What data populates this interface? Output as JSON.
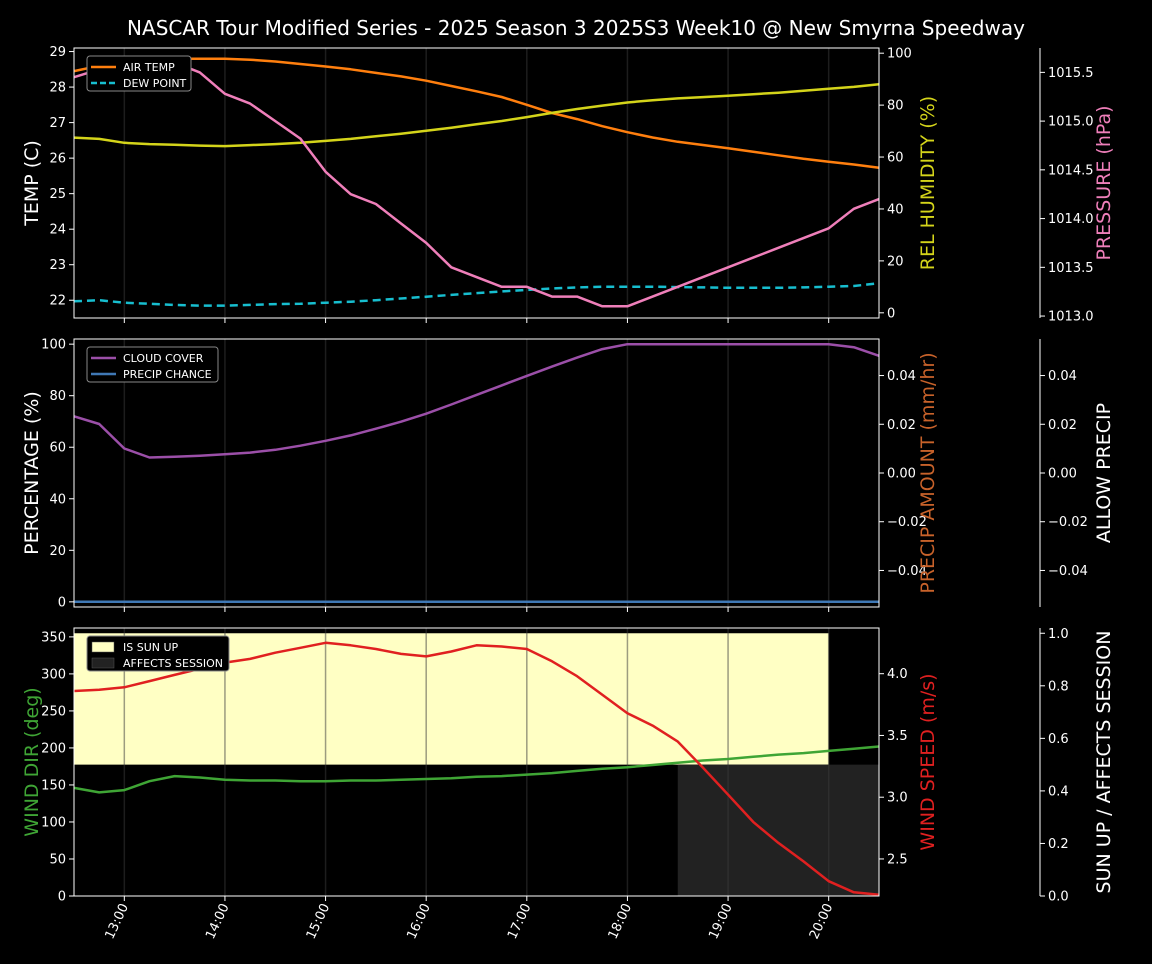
{
  "chart_data": {
    "title": "NASCAR Tour Modified Series - 2025 Season 3 2025S3 Week10 @ New Smyrna Speedway",
    "time_ticks": [
      "13:00",
      "14:00",
      "15:00",
      "16:00",
      "17:00",
      "18:00",
      "19:00",
      "20:00"
    ],
    "x_range_hours": [
      12.5,
      20.5
    ],
    "x": [
      12.5,
      12.75,
      13.0,
      13.25,
      13.5,
      13.75,
      14.0,
      14.25,
      14.5,
      14.75,
      15.0,
      15.25,
      15.5,
      15.75,
      16.0,
      16.25,
      16.5,
      16.75,
      17.0,
      17.25,
      17.5,
      17.75,
      18.0,
      18.25,
      18.5,
      18.75,
      19.0,
      19.25,
      19.5,
      19.75,
      20.0,
      20.25,
      20.5
    ],
    "panels": [
      {
        "type": "line",
        "ylabel": "TEMP (C)",
        "ylim": [
          21.5,
          29.1
        ],
        "yticks": [
          22,
          23,
          24,
          25,
          26,
          27,
          28,
          29
        ],
        "right_label": "REL HUMIDITY (%)",
        "right_color": "#d4d41a",
        "right_ylim": [
          -2,
          102
        ],
        "right_ticks": [
          0,
          20,
          40,
          60,
          80,
          100
        ],
        "far_label": "PRESSURE (hPa)",
        "far_color": "#ef7fba",
        "far_ylim": [
          1012.98,
          1015.75
        ],
        "far_ticks": [
          "1013.0",
          "1013.5",
          "1014.0",
          "1014.5",
          "1015.0",
          "1015.5"
        ],
        "legend": [
          "AIR TEMP",
          "DEW POINT"
        ],
        "series": [
          {
            "name": "AIR TEMP",
            "axis": "left",
            "color": "#ff7f0e",
            "values": [
              28.45,
              28.6,
              28.75,
              28.8,
              28.8,
              28.8,
              28.8,
              28.77,
              28.72,
              28.65,
              28.58,
              28.5,
              28.4,
              28.3,
              28.18,
              28.03,
              27.88,
              27.72,
              27.5,
              27.27,
              27.1,
              26.9,
              26.73,
              26.58,
              26.46,
              26.37,
              26.28,
              26.18,
              26.08,
              25.98,
              25.9,
              25.82,
              25.73
            ]
          },
          {
            "name": "DEW POINT",
            "axis": "left",
            "color": "#17becf",
            "dashed": true,
            "values": [
              21.97,
              22.0,
              21.93,
              21.9,
              21.87,
              21.85,
              21.85,
              21.87,
              21.89,
              21.9,
              21.93,
              21.96,
              22.0,
              22.05,
              22.1,
              22.15,
              22.2,
              22.25,
              22.29,
              22.33,
              22.36,
              22.38,
              22.38,
              22.38,
              22.37,
              22.36,
              22.35,
              22.35,
              22.35,
              22.36,
              22.38,
              22.4,
              22.48
            ]
          },
          {
            "name": "REL HUMIDITY",
            "axis": "right",
            "color": "#d4d41a",
            "values": [
              67.5,
              67.0,
              65.5,
              65.0,
              64.7,
              64.4,
              64.2,
              64.6,
              65.0,
              65.5,
              66.2,
              67.0,
              68.0,
              69.0,
              70.1,
              71.3,
              72.6,
              73.9,
              75.4,
              77.0,
              78.5,
              79.8,
              81.0,
              81.9,
              82.6,
              83.1,
              83.6,
              84.2,
              84.8,
              85.5,
              86.3,
              87.0,
              88.0
            ]
          },
          {
            "name": "PRESSURE",
            "axis": "far",
            "color": "#ef7fba",
            "values": [
              1015.45,
              1015.53,
              1015.6,
              1015.6,
              1015.6,
              1015.5,
              1015.28,
              1015.18,
              1015.0,
              1014.82,
              1014.48,
              1014.25,
              1014.15,
              1013.95,
              1013.75,
              1013.5,
              1013.4,
              1013.3,
              1013.3,
              1013.2,
              1013.2,
              1013.1,
              1013.1,
              1013.2,
              1013.3,
              1013.4,
              1013.5,
              1013.6,
              1013.7,
              1013.8,
              1013.9,
              1014.1,
              1014.2
            ]
          }
        ]
      },
      {
        "type": "line",
        "ylabel": "PERCENTAGE (%)",
        "ylim": [
          -2,
          102
        ],
        "yticks": [
          0,
          20,
          40,
          60,
          80,
          100
        ],
        "right_label": "PRECIP AMOUNT (mm/hr)",
        "right_color": "#c8622a",
        "right_ylim": [
          -0.055,
          0.055
        ],
        "right_ticks": [
          "0.04",
          "0.02",
          "0.00",
          "−0.02",
          "−0.04"
        ],
        "far_label": "ALLOW PRECIP",
        "far_color": "#ffffff",
        "far_ylim": [
          -0.055,
          0.055
        ],
        "far_ticks": [
          "0.04",
          "0.02",
          "0.00",
          "−0.02",
          "−0.04"
        ],
        "legend": [
          "CLOUD COVER",
          "PRECIP CHANCE"
        ],
        "series": [
          {
            "name": "CLOUD COVER",
            "axis": "left",
            "color": "#9b4fa8",
            "values": [
              72,
              69,
              59.5,
              56,
              56.3,
              56.7,
              57.3,
              57.9,
              59,
              60.6,
              62.5,
              64.6,
              67.2,
              69.9,
              73,
              76.6,
              80.3,
              84,
              87.7,
              91.3,
              94.8,
              98.1,
              100,
              100,
              100,
              100,
              100,
              100,
              100,
              100,
              100,
              98.8,
              95.5
            ]
          },
          {
            "name": "PRECIP CHANCE",
            "axis": "left",
            "color": "#3f78b5",
            "values": [
              0,
              0,
              0,
              0,
              0,
              0,
              0,
              0,
              0,
              0,
              0,
              0,
              0,
              0,
              0,
              0,
              0,
              0,
              0,
              0,
              0,
              0,
              0,
              0,
              0,
              0,
              0,
              0,
              0,
              0,
              0,
              0,
              0
            ]
          }
        ]
      },
      {
        "type": "line",
        "ylabel": "WIND DIR (deg)",
        "ylabel_color": "#3fa535",
        "ylim": [
          0,
          362
        ],
        "yticks": [
          0,
          50,
          100,
          150,
          200,
          250,
          300,
          350
        ],
        "right_label": "WIND SPEED (m/s)",
        "right_color": "#e02020",
        "right_ylim": [
          2.2,
          4.37
        ],
        "right_ticks": [
          "2.5",
          "3.0",
          "3.5",
          "4.0"
        ],
        "far_label": "SUN UP / AFFECTS SESSION",
        "far_color": "#ffffff",
        "far_ylim": [
          0,
          1.02
        ],
        "far_ticks": [
          "0.0",
          "0.2",
          "0.4",
          "0.6",
          "0.8",
          "1.0"
        ],
        "legend": [
          "IS SUN UP",
          "AFFECTS SESSION"
        ],
        "bands": [
          {
            "name": "IS SUN UP",
            "color": "#ffffc4",
            "x_start": 12.5,
            "x_end": 20.0,
            "y_low": 0.5,
            "y_high": 1.0
          },
          {
            "name": "AFFECTS SESSION",
            "color": "#222222",
            "x_start": 18.5,
            "x_end": 20.5,
            "y_low": 0.0,
            "y_high": 0.5
          }
        ],
        "series": [
          {
            "name": "WIND DIR",
            "axis": "left",
            "color": "#3fa535",
            "values": [
              146,
              140,
              143,
              155,
              162,
              160,
              157,
              156,
              156,
              155,
              155,
              156,
              156,
              157,
              158,
              159,
              161,
              162,
              164,
              166,
              169,
              172,
              174,
              177,
              180,
              183,
              185,
              188,
              191,
              193,
              196,
              199,
              202
            ]
          },
          {
            "name": "WIND SPEED",
            "axis": "right",
            "color": "#e02020",
            "values": [
              3.86,
              3.87,
              3.89,
              3.94,
              3.99,
              4.04,
              4.09,
              4.12,
              4.17,
              4.21,
              4.25,
              4.23,
              4.2,
              4.16,
              4.14,
              4.18,
              4.23,
              4.22,
              4.2,
              4.1,
              3.98,
              3.83,
              3.68,
              3.58,
              3.45,
              3.24,
              3.02,
              2.8,
              2.63,
              2.48,
              2.32,
              2.23,
              2.21
            ]
          }
        ]
      }
    ]
  }
}
